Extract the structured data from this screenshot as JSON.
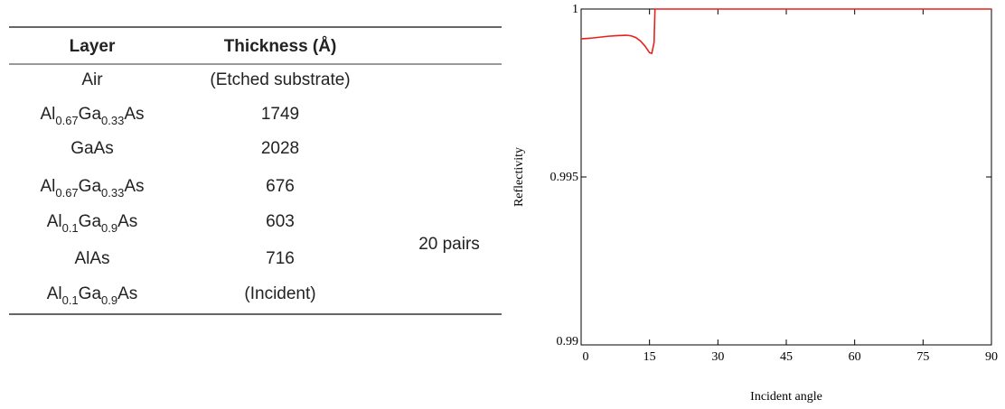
{
  "table": {
    "headers": [
      "Layer",
      "Thickness (Å)"
    ],
    "rows": [
      {
        "layer": [
          "Air"
        ],
        "thickness": "(Etched substrate)"
      },
      {
        "layer": [
          "Al",
          "0.67",
          "Ga",
          "0.33",
          "As"
        ],
        "thickness": 1749
      },
      {
        "layer": [
          "GaAs"
        ],
        "thickness": 2028
      },
      {
        "layer": [
          "Al",
          "0.67",
          "Ga",
          "0.33",
          "As"
        ],
        "thickness": 676
      },
      {
        "layer": [
          "Al",
          "0.1",
          "Ga",
          "0.9",
          "As"
        ],
        "thickness": 603
      },
      {
        "layer": [
          "AlAs"
        ],
        "thickness": 716
      },
      {
        "layer": [
          "Al",
          "0.1",
          "Ga",
          "0.9",
          "As"
        ],
        "thickness": "(Incident)"
      }
    ],
    "note": "20 pairs"
  },
  "chart_data": {
    "type": "line",
    "x_label": "Incident angle",
    "y_label": "Reflectivity",
    "x": [
      0,
      2,
      4,
      6,
      8,
      10,
      11,
      12,
      13,
      14,
      15,
      15.5,
      16,
      16.2,
      30,
      60,
      90
    ],
    "series": [
      {
        "name": "Reflectivity",
        "color": "#e8201c",
        "values": [
          0.99911,
          0.99913,
          0.99916,
          0.99919,
          0.99921,
          0.99922,
          0.9992,
          0.99915,
          0.99905,
          0.9989,
          0.9987,
          0.99868,
          0.999,
          1,
          1,
          1,
          1
        ]
      }
    ],
    "xlim": [
      0,
      90
    ],
    "ylim": [
      0.99,
      1
    ],
    "xticks": [
      0,
      15,
      30,
      45,
      60,
      75,
      90
    ],
    "yticks": [
      0.99,
      0.995,
      1
    ]
  }
}
